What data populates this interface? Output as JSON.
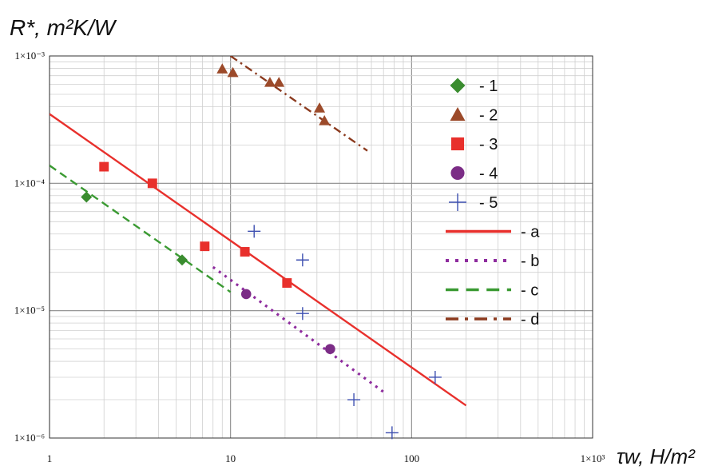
{
  "chart_data": {
    "type": "scatter",
    "title": "",
    "ylabel": "R*, m²K/W",
    "xlabel": "τw, H/m²",
    "x_scale": "log",
    "y_scale": "log",
    "xlim": [
      1,
      1000
    ],
    "ylim": [
      1e-06,
      0.001
    ],
    "grid": true,
    "legend_position": "right",
    "x_ticks": [
      "1",
      "10",
      "100",
      "1×10³"
    ],
    "y_ticks": [
      "1×10⁻⁶",
      "1×10⁻⁵",
      "1×10⁻⁴",
      "1×10⁻³"
    ],
    "series": [
      {
        "name": "- 1",
        "kind": "points",
        "marker": "diamond",
        "color": "#3a8c2f",
        "points": [
          [
            1.6,
            7.8e-05
          ],
          [
            5.4,
            2.5e-05
          ]
        ]
      },
      {
        "name": "- 2",
        "kind": "points",
        "marker": "triangle",
        "color": "#9c4a2a",
        "points": [
          [
            9.0,
            0.00079
          ],
          [
            10.3,
            0.00074
          ],
          [
            16.5,
            0.00062
          ],
          [
            18.5,
            0.00062
          ],
          [
            31,
            0.00039
          ],
          [
            33,
            0.00031
          ]
        ]
      },
      {
        "name": "- 3",
        "kind": "points",
        "marker": "square",
        "color": "#e8302c",
        "points": [
          [
            2.0,
            0.000135
          ],
          [
            3.7,
            0.0001
          ],
          [
            7.2,
            3.2e-05
          ],
          [
            12.0,
            2.9e-05
          ],
          [
            20.5,
            1.65e-05
          ]
        ]
      },
      {
        "name": "- 4",
        "kind": "points",
        "marker": "circle",
        "color": "#7b2c86",
        "points": [
          [
            12.2,
            1.35e-05
          ],
          [
            35.5,
            5e-06
          ]
        ]
      },
      {
        "name": "- 5",
        "kind": "points",
        "marker": "plus",
        "color": "#3d4fb0",
        "points": [
          [
            13.5,
            4.2e-05
          ],
          [
            25,
            2.5e-05
          ],
          [
            25,
            9.5e-06
          ],
          [
            48,
            2e-06
          ],
          [
            78,
            1.1e-06
          ],
          [
            135,
            3e-06
          ]
        ]
      },
      {
        "name": "- a",
        "kind": "line",
        "dash": "solid",
        "color": "#e8302c",
        "points": [
          [
            1,
            0.00035
          ],
          [
            200,
            1.8e-06
          ]
        ]
      },
      {
        "name": "- b",
        "kind": "line",
        "dash": "dotted",
        "color": "#8e2c9e",
        "points": [
          [
            8,
            2.2e-05
          ],
          [
            70,
            2.3e-06
          ]
        ]
      },
      {
        "name": "- c",
        "kind": "line",
        "dash": "dashed",
        "color": "#3a9a32",
        "points": [
          [
            1,
            0.000138
          ],
          [
            10,
            1.4e-05
          ]
        ]
      },
      {
        "name": "- d",
        "kind": "line",
        "dash": "dashdot",
        "color": "#8b3a1e",
        "points": [
          [
            10,
            0.001
          ],
          [
            57,
            0.00018
          ]
        ]
      }
    ]
  }
}
